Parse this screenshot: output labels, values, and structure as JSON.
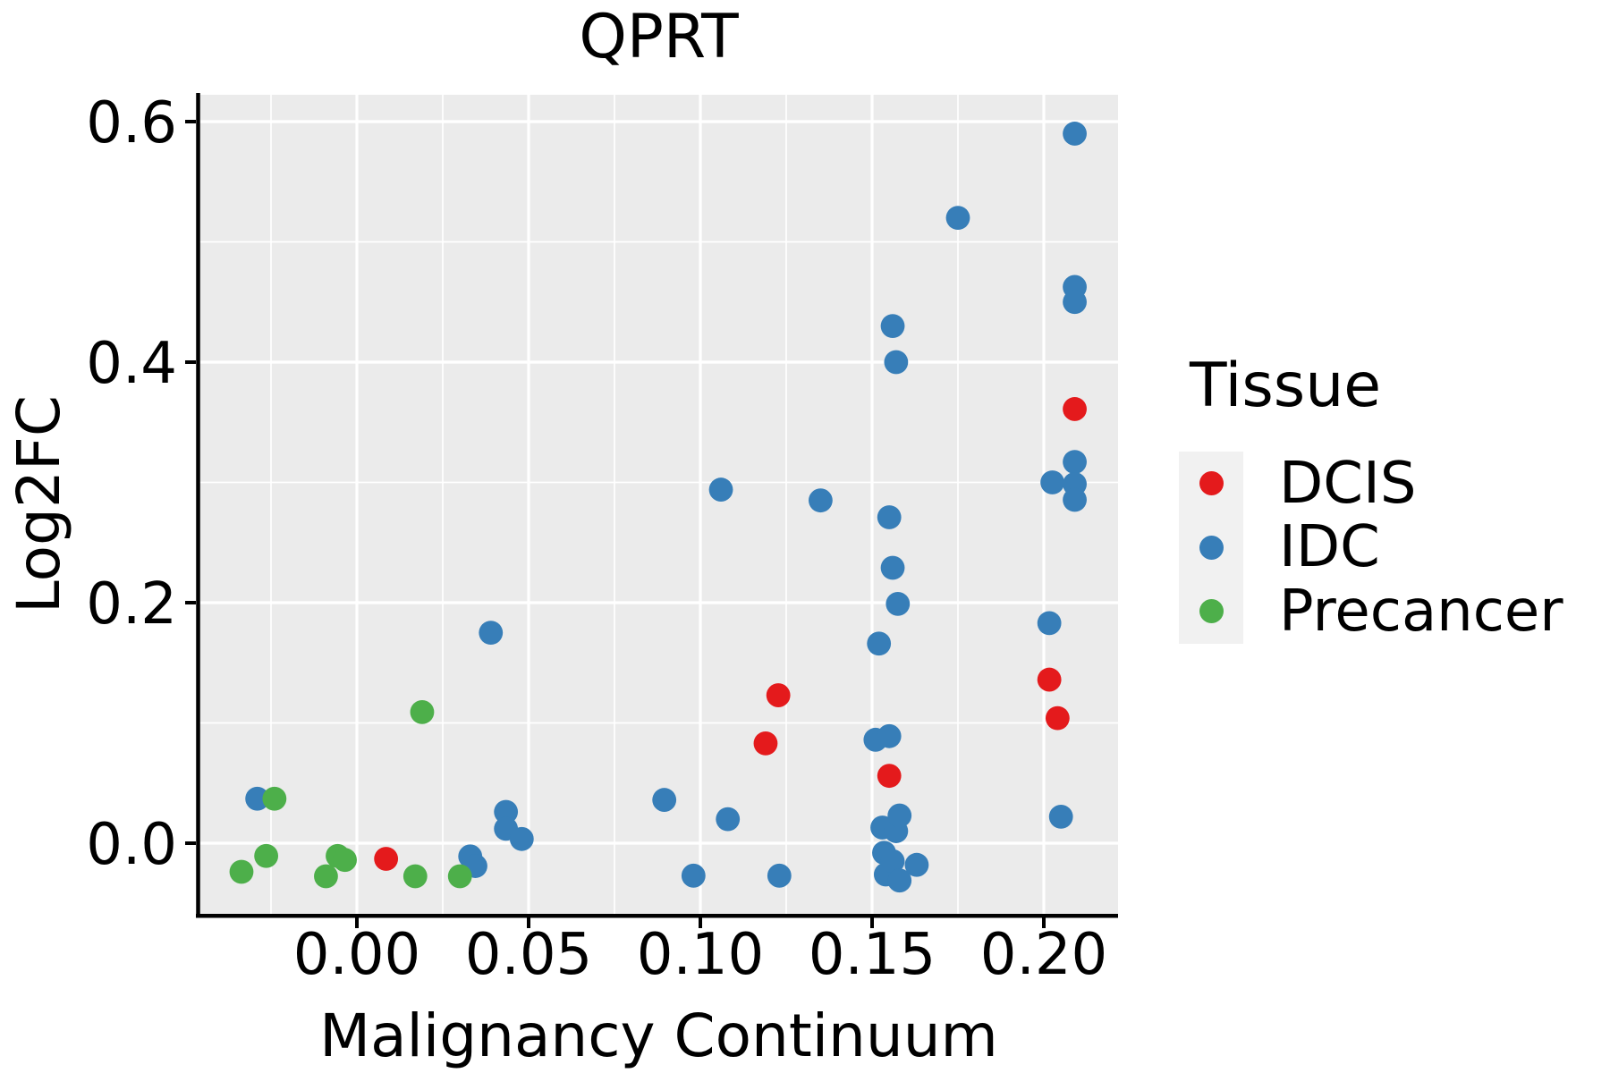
{
  "page": {
    "background": "#ffffff"
  },
  "chart_data": {
    "type": "scatter",
    "title": "QPRT",
    "xlabel": "Malignancy Continuum",
    "ylabel": "Log2FC",
    "legend": {
      "title": "Tissue",
      "position": "right"
    },
    "axes": {
      "xlim": [
        -0.046,
        0.222
      ],
      "ylim": [
        -0.059,
        0.622
      ],
      "x_major_ticks": [
        0.0,
        0.05,
        0.1,
        0.15,
        0.2
      ],
      "x_tick_labels": [
        "0.00",
        "0.05",
        "0.10",
        "0.15",
        "0.20"
      ],
      "x_minor_ticks": [
        -0.025,
        0.025,
        0.075,
        0.125,
        0.175
      ],
      "y_major_ticks": [
        0.0,
        0.2,
        0.4,
        0.6
      ],
      "y_tick_labels": [
        "0.0",
        "0.2",
        "0.4",
        "0.6"
      ],
      "y_minor_ticks": [
        0.1,
        0.3,
        0.5
      ],
      "grid": true
    },
    "styles": {
      "panel_bg": "#EBEBEB",
      "grid_color": "#FFFFFF",
      "legend_key_bg": "#F1F1F1",
      "axis_color": "#000000",
      "tick_label_color": "#000000",
      "point_radius": 13.4
    },
    "series": [
      {
        "name": "DCIS",
        "color": "#E41A1C",
        "points": [
          [
            0.0085,
            -0.013
          ],
          [
            0.119,
            0.083
          ],
          [
            0.1227,
            0.123
          ],
          [
            0.155,
            0.056
          ],
          [
            0.2016,
            0.136
          ],
          [
            0.204,
            0.104
          ],
          [
            0.209,
            0.361
          ]
        ]
      },
      {
        "name": "IDC",
        "color": "#377EB8",
        "points": [
          [
            -0.029,
            0.037
          ],
          [
            0.033,
            -0.011
          ],
          [
            0.0345,
            -0.019
          ],
          [
            0.039,
            0.175
          ],
          [
            0.0434,
            0.026
          ],
          [
            0.0434,
            0.012
          ],
          [
            0.048,
            0.0035
          ],
          [
            0.0895,
            0.036
          ],
          [
            0.098,
            -0.027
          ],
          [
            0.106,
            0.294
          ],
          [
            0.108,
            0.02
          ],
          [
            0.123,
            -0.027
          ],
          [
            0.135,
            0.285
          ],
          [
            0.151,
            0.086
          ],
          [
            0.152,
            0.166
          ],
          [
            0.153,
            0.013
          ],
          [
            0.1535,
            -0.008
          ],
          [
            0.154,
            -0.026
          ],
          [
            0.155,
            0.089
          ],
          [
            0.155,
            0.271
          ],
          [
            0.156,
            0.229
          ],
          [
            0.156,
            -0.015
          ],
          [
            0.156,
            0.43
          ],
          [
            0.157,
            0.4
          ],
          [
            0.157,
            0.01
          ],
          [
            0.1575,
            0.199
          ],
          [
            0.158,
            0.023
          ],
          [
            0.158,
            -0.031
          ],
          [
            0.163,
            -0.018
          ],
          [
            0.175,
            0.52
          ],
          [
            0.2016,
            0.183
          ],
          [
            0.2025,
            0.3
          ],
          [
            0.205,
            0.022
          ],
          [
            0.209,
            0.317
          ],
          [
            0.209,
            0.2986
          ],
          [
            0.209,
            0.2855
          ],
          [
            0.209,
            0.4625
          ],
          [
            0.209,
            0.45
          ],
          [
            0.209,
            0.59
          ]
        ]
      },
      {
        "name": "Precancer",
        "color": "#4DAF4A",
        "points": [
          [
            -0.0336,
            -0.0238
          ],
          [
            -0.0264,
            -0.0106
          ],
          [
            -0.024,
            0.037
          ],
          [
            -0.009,
            -0.0275
          ],
          [
            -0.0056,
            -0.0106
          ],
          [
            -0.0035,
            -0.0139
          ],
          [
            0.017,
            -0.0275
          ],
          [
            0.019,
            0.109
          ],
          [
            0.03,
            -0.0275
          ]
        ]
      }
    ]
  }
}
